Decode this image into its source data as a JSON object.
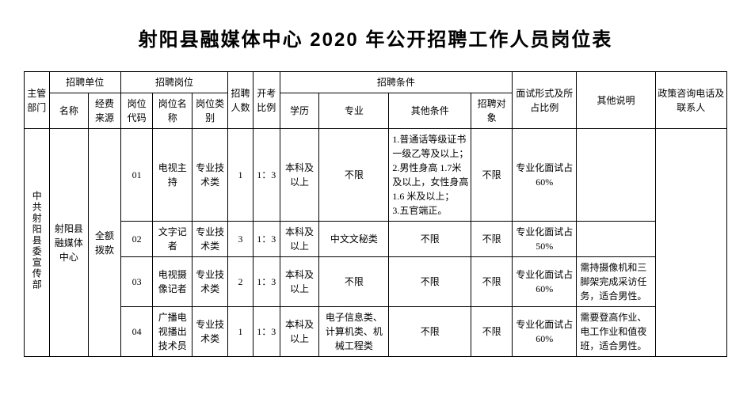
{
  "title": "射阳县融媒体中心 2020 年公开招聘工作人员岗位表",
  "table": {
    "columns": {
      "dept": "主管部门",
      "org_group": "招聘单位",
      "org_name": "名称",
      "fund_source": "经费来源",
      "post_group": "招聘岗位",
      "post_code": "岗位代码",
      "post_name": "岗位名称",
      "post_type": "岗位类别",
      "headcount": "招聘人数",
      "ratio": "开考比例",
      "cond_group": "招聘条件",
      "edu": "学历",
      "major": "专业",
      "other_cond": "其他条件",
      "target": "招聘对象",
      "interview": "面试形式及所占比例",
      "remark": "其他说明",
      "contact": "政策咨询电话及联系人"
    },
    "widths": {
      "dept": 28,
      "org_name": 44,
      "fund_source": 36,
      "post_code": 36,
      "post_name": 44,
      "post_type": 40,
      "headcount": 28,
      "ratio": 30,
      "edu": 44,
      "major": 78,
      "other_cond": 92,
      "target": 46,
      "interview": 72,
      "remark": 88,
      "contact": 80
    },
    "shared": {
      "dept": "中共射阳县委宣传部",
      "org_name": "射阳县融媒体中心",
      "fund_source": "全额拨款",
      "contact": ""
    },
    "rows": [
      {
        "post_code": "01",
        "post_name": "电视主持",
        "post_type": "专业技术类",
        "headcount": "1",
        "ratio": "1：3",
        "edu": "本科及以上",
        "major": "不限",
        "other_cond": "1.普通话等级证书一级乙等及以上；\n2.男性身高 1.7米及以上，女性身高 1.6 米及以上；\n3.五官端正。",
        "target": "不限",
        "interview": "专业化面试占 60%",
        "remark": ""
      },
      {
        "post_code": "02",
        "post_name": "文字记者",
        "post_type": "专业技术类",
        "headcount": "3",
        "ratio": "1：3",
        "edu": "本科及以上",
        "major": "中文文秘类",
        "other_cond": "不限",
        "target": "不限",
        "interview": "专业化面试占 50%",
        "remark": ""
      },
      {
        "post_code": "03",
        "post_name": "电视摄像记者",
        "post_type": "专业技术类",
        "headcount": "2",
        "ratio": "1：3",
        "edu": "本科及以上",
        "major": "不限",
        "other_cond": "不限",
        "target": "不限",
        "interview": "专业化面试占 60%",
        "remark": "需持摄像机和三脚架完成采访任务，适合男性。"
      },
      {
        "post_code": "04",
        "post_name": "广播电视播出技术员",
        "post_type": "专业技术类",
        "headcount": "1",
        "ratio": "1：3",
        "edu": "本科及以上",
        "major": "电子信息类、计算机类、机械工程类",
        "other_cond": "不限",
        "target": "不限",
        "interview": "专业化面试占 60%",
        "remark": "需要登高作业、电工作业和值夜班，适合男性。"
      }
    ]
  }
}
